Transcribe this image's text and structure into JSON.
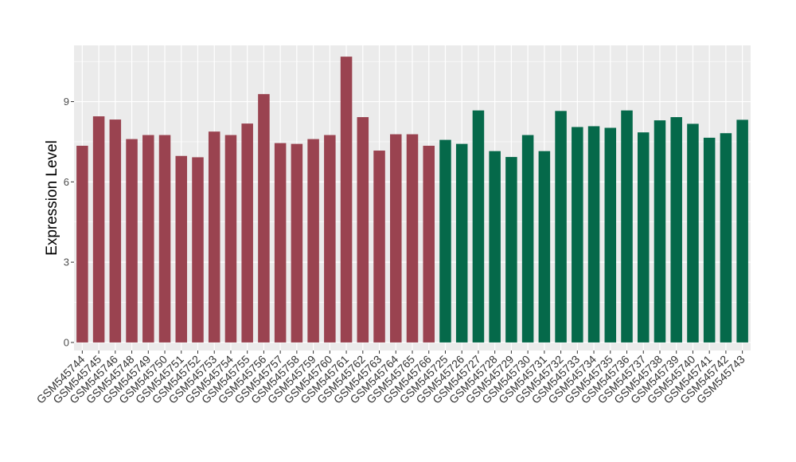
{
  "chart_data": {
    "type": "bar",
    "title": "",
    "xlabel": "",
    "ylabel": "Expression Level",
    "ylim": [
      -0.3,
      11.1
    ],
    "yticks": [
      0,
      3,
      6,
      9
    ],
    "grid": true,
    "legend": "none",
    "panel_background": "#ebebeb",
    "grid_color": "#ffffff",
    "groups": [
      {
        "color": "#9a4350"
      },
      {
        "color": "#05694a"
      }
    ],
    "categories": [
      "GSM545744",
      "GSM545745",
      "GSM545746",
      "GSM545748",
      "GSM545749",
      "GSM545750",
      "GSM545751",
      "GSM545752",
      "GSM545753",
      "GSM545754",
      "GSM545755",
      "GSM545756",
      "GSM545757",
      "GSM545758",
      "GSM545759",
      "GSM545760",
      "GSM545761",
      "GSM545762",
      "GSM545763",
      "GSM545764",
      "GSM545765",
      "GSM545766",
      "GSM545725",
      "GSM545726",
      "GSM545727",
      "GSM545728",
      "GSM545729",
      "GSM545730",
      "GSM545731",
      "GSM545732",
      "GSM545733",
      "GSM545734",
      "GSM545735",
      "GSM545736",
      "GSM545737",
      "GSM545738",
      "GSM545739",
      "GSM545740",
      "GSM545741",
      "GSM545742",
      "GSM545743"
    ],
    "values": [
      7.35,
      8.45,
      8.33,
      7.6,
      7.75,
      7.75,
      6.97,
      6.92,
      7.88,
      7.75,
      8.18,
      9.28,
      7.45,
      7.42,
      7.6,
      7.75,
      10.68,
      8.42,
      7.17,
      7.78,
      7.78,
      7.35,
      7.57,
      7.42,
      8.67,
      7.15,
      6.93,
      7.75,
      7.15,
      8.65,
      8.05,
      8.08,
      8.02,
      8.67,
      7.85,
      8.3,
      8.42,
      8.17,
      7.65,
      7.82,
      8.32
    ],
    "group_index": [
      0,
      0,
      0,
      0,
      0,
      0,
      0,
      0,
      0,
      0,
      0,
      0,
      0,
      0,
      0,
      0,
      0,
      0,
      0,
      0,
      0,
      0,
      1,
      1,
      1,
      1,
      1,
      1,
      1,
      1,
      1,
      1,
      1,
      1,
      1,
      1,
      1,
      1,
      1,
      1,
      1
    ]
  }
}
